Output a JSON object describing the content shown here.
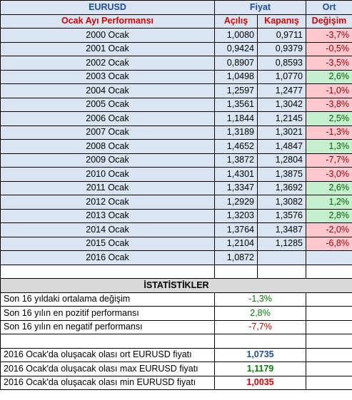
{
  "header": {
    "pair": "EURUSD",
    "price_label": "Fiyat",
    "avg_label": "Ort",
    "subtitle": "Ocak Ayı Performansı",
    "open_label": "Açılış",
    "close_label": "Kapanış",
    "change_label": "Değişim"
  },
  "rows": [
    {
      "label": "2000 Ocak",
      "open": "1,0080",
      "close": "0,9711",
      "change": "-3,7%",
      "dir": "neg"
    },
    {
      "label": "2001 Ocak",
      "open": "0,9424",
      "close": "0,9379",
      "change": "-0,5%",
      "dir": "neg"
    },
    {
      "label": "2002 Ocak",
      "open": "0,8907",
      "close": "0,8593",
      "change": "-3,5%",
      "dir": "neg"
    },
    {
      "label": "2003 Ocak",
      "open": "1,0498",
      "close": "1,0770",
      "change": "2,6%",
      "dir": "pos"
    },
    {
      "label": "2004 Ocak",
      "open": "1,2597",
      "close": "1,2477",
      "change": "-1,0%",
      "dir": "neg"
    },
    {
      "label": "2005 Ocak",
      "open": "1,3561",
      "close": "1,3042",
      "change": "-3,8%",
      "dir": "neg"
    },
    {
      "label": "2006 Ocak",
      "open": "1,1844",
      "close": "1,2145",
      "change": "2,5%",
      "dir": "pos"
    },
    {
      "label": "2007 Ocak",
      "open": "1,3189",
      "close": "1,3021",
      "change": "-1,3%",
      "dir": "neg"
    },
    {
      "label": "2008 Ocak",
      "open": "1,4652",
      "close": "1,4847",
      "change": "1,3%",
      "dir": "pos"
    },
    {
      "label": "2009 Ocak",
      "open": "1,3872",
      "close": "1,2804",
      "change": "-7,7%",
      "dir": "neg"
    },
    {
      "label": "2010 Ocak",
      "open": "1,4301",
      "close": "1,3875",
      "change": "-3,0%",
      "dir": "neg"
    },
    {
      "label": "2011 Ocak",
      "open": "1,3347",
      "close": "1,3692",
      "change": "2,6%",
      "dir": "pos"
    },
    {
      "label": "2012 Ocak",
      "open": "1,2929",
      "close": "1,3082",
      "change": "1,2%",
      "dir": "pos"
    },
    {
      "label": "2013 Ocak",
      "open": "1,3203",
      "close": "1,3576",
      "change": "2,8%",
      "dir": "pos"
    },
    {
      "label": "2014 Ocak",
      "open": "1,3764",
      "close": "1,3487",
      "change": "-2,0%",
      "dir": "neg"
    },
    {
      "label": "2015 Ocak",
      "open": "1,2104",
      "close": "1,1285",
      "change": "-6,8%",
      "dir": "neg"
    },
    {
      "label": "2016 Ocak",
      "open": "1,0872",
      "close": "",
      "change": "",
      "dir": "none"
    }
  ],
  "stats": {
    "title": "İSTATİSTİKLER",
    "avg_label": "Son 16 yıldaki ortalama  değişim",
    "avg_value": "-1,3%",
    "best_label": "Son 16 yılın en pozitif performansı",
    "best_value": "2,8%",
    "worst_label": "Son 16 yılın en negatif performansı",
    "worst_value": "-7,7%"
  },
  "forecast": {
    "avg_label": "2016 Ocak'da oluşacak olası ort EURUSD fiyatı",
    "avg_value": "1,0735",
    "max_label": "2016 Ocak'da oluşacak olası max EURUSD fiyatı",
    "max_value": "1,1179",
    "min_label": "2016 Ocak'da oluşacak olası min EURUSD fiyatı",
    "min_value": "1,0035"
  }
}
